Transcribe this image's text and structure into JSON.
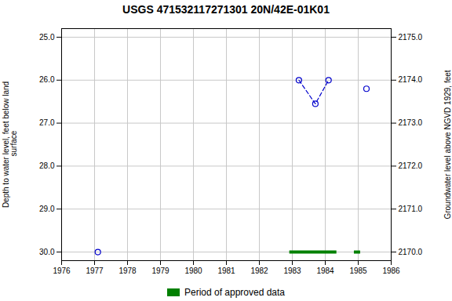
{
  "chart_data": {
    "type": "scatter",
    "title": "USGS 471532117271301 20N/42E-01K01",
    "ylabel": "Depth to water level, feet below land\n surface",
    "y2label": "Groundwater level above NGVD 1929, feet",
    "xlim": [
      1976,
      1986
    ],
    "xticks": [
      1976,
      1977,
      1978,
      1979,
      1980,
      1981,
      1982,
      1983,
      1984,
      1985,
      1986
    ],
    "ylim": [
      30.2,
      24.8
    ],
    "yticks": [
      {
        "value": 25.0,
        "label": "25.0"
      },
      {
        "value": 26.0,
        "label": "26.0"
      },
      {
        "value": 27.0,
        "label": "27.0"
      },
      {
        "value": 28.0,
        "label": "28.0"
      },
      {
        "value": 29.0,
        "label": "29.0"
      },
      {
        "value": 30.0,
        "label": "30.0"
      }
    ],
    "y2lim": [
      2169.8,
      2175.2
    ],
    "y2ticks": [
      {
        "value": 2170.0,
        "label": "2170.0"
      },
      {
        "value": 2171.0,
        "label": "2171.0"
      },
      {
        "value": 2172.0,
        "label": "2172.0"
      },
      {
        "value": 2173.0,
        "label": "2173.0"
      },
      {
        "value": 2174.0,
        "label": "2174.0"
      },
      {
        "value": 2175.0,
        "label": "2175.0"
      }
    ],
    "grid": true,
    "legend": "bottom",
    "series": [
      {
        "type": "line",
        "line_style": "dashed",
        "color": "#0000cc",
        "x": [
          1983.2,
          1983.7,
          1984.1
        ],
        "values": [
          26.0,
          26.55,
          26.0
        ]
      },
      {
        "type": "scatter",
        "marker": "circle",
        "color": "#0000cc",
        "x": [
          1977.1,
          1983.2,
          1983.7,
          1984.1,
          1985.25
        ],
        "values": [
          30.0,
          26.0,
          26.55,
          26.0,
          26.2
        ]
      },
      {
        "name": "Period of approved data",
        "type": "span",
        "color": "#008000",
        "x_start": [
          1982.92,
          1984.88
        ],
        "x_end": [
          1984.35,
          1985.07
        ],
        "values": [
          30.0,
          30.0
        ]
      }
    ]
  }
}
